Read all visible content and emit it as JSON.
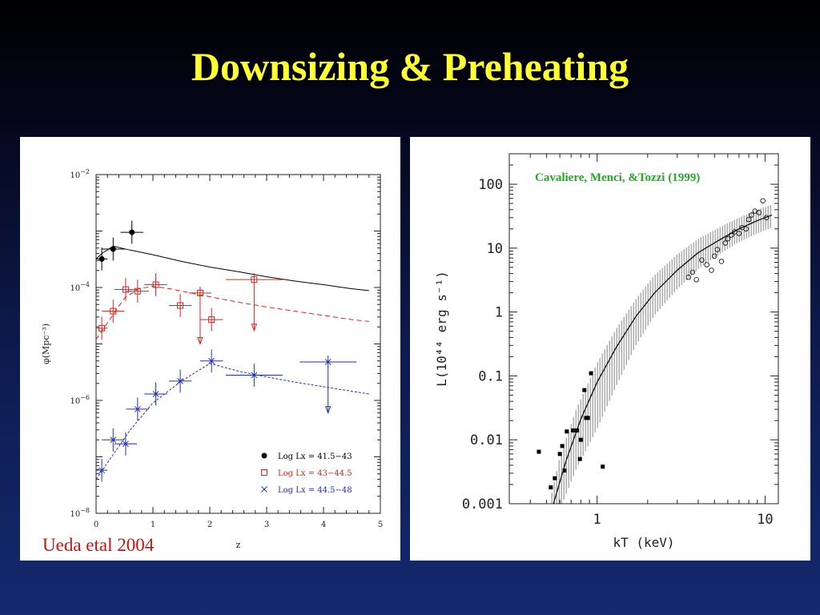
{
  "slide": {
    "title": "Downsizing & Preheating",
    "credit_left": "Ueda etal 2004",
    "credit_right": "Cavaliere, Menci, &Tozzi (1999)"
  },
  "colors": {
    "title": "#ffff33",
    "series_black": "#000000",
    "series_red": "#dd2222",
    "series_blue": "#2233aa",
    "credit_left": "#cc1111",
    "credit_right": "#22aa22"
  },
  "chart_data": [
    {
      "type": "scatter",
      "xlabel": "z",
      "ylabel": "φ(Mpc⁻³)",
      "xlim": [
        0,
        5
      ],
      "ylim": [
        1e-08,
        0.01
      ],
      "log_y": true,
      "x_ticks": [
        "0",
        "1",
        "2",
        "3",
        "4",
        "5"
      ],
      "y_ticks": [
        {
          "value": 0.01,
          "base": "10",
          "exp": "−2"
        },
        {
          "value": 0.0001,
          "base": "10",
          "exp": "−4"
        },
        {
          "value": 1e-06,
          "base": "10",
          "exp": "−6"
        },
        {
          "value": 1e-08,
          "base": "10",
          "exp": "−8"
        }
      ],
      "legend_position": "bottom-right",
      "series": [
        {
          "name": "Log Lx = 41.5−43",
          "color": "#000000",
          "marker": "filled-circle",
          "points": [
            {
              "x": 0.1,
              "y": 0.00032
            },
            {
              "x": 0.3,
              "y": 0.00048
            },
            {
              "x": 0.63,
              "y": 0.00095
            }
          ],
          "model": [
            [
              0,
              0.00032
            ],
            [
              0.1,
              0.0004
            ],
            [
              0.3,
              0.00054
            ],
            [
              0.6,
              0.00046
            ],
            [
              1,
              0.00038
            ],
            [
              1.5,
              0.00029
            ],
            [
              2,
              0.00023
            ],
            [
              2.5,
              0.00019
            ],
            [
              3,
              0.000155
            ],
            [
              3.5,
              0.00013
            ],
            [
              4,
              0.000112
            ],
            [
              4.5,
              9.5e-05
            ],
            [
              4.8,
              8.8e-05
            ]
          ]
        },
        {
          "name": "Log Lx = 43−44.5",
          "color": "#dd2222",
          "marker": "open-square",
          "points": [
            {
              "x": 0.1,
              "y": 1.9e-05
            },
            {
              "x": 0.3,
              "y": 3.8e-05
            },
            {
              "x": 0.52,
              "y": 9.2e-05
            },
            {
              "x": 0.73,
              "y": 8.6e-05
            },
            {
              "x": 1.05,
              "y": 0.000112
            },
            {
              "x": 1.48,
              "y": 4.8e-05
            },
            {
              "x": 1.83,
              "y": 8e-05
            },
            {
              "x": 2.03,
              "y": 2.7e-05
            },
            {
              "x": 2.78,
              "y": 0.000138
            }
          ],
          "upper_limits": [
            {
              "x": 1.83,
              "y": 8e-05
            },
            {
              "x": 2.78,
              "y": 0.000138
            }
          ],
          "model": [
            [
              0,
              1.2e-05
            ],
            [
              0.25,
              2.8e-05
            ],
            [
              0.5,
              6.5e-05
            ],
            [
              0.75,
              9.5e-05
            ],
            [
              1,
              0.000105
            ],
            [
              1.3,
              9.5e-05
            ],
            [
              1.8,
              7.5e-05
            ],
            [
              2.5,
              5.5e-05
            ],
            [
              3,
              4.5e-05
            ],
            [
              3.5,
              3.8e-05
            ],
            [
              4,
              3.2e-05
            ],
            [
              4.5,
              2.7e-05
            ],
            [
              4.8,
              2.5e-05
            ]
          ]
        },
        {
          "name": "Log Lx = 44.5−48",
          "color": "#2233aa",
          "marker": "cross",
          "points": [
            {
              "x": 0.1,
              "y": 5.8e-08
            },
            {
              "x": 0.3,
              "y": 2e-07
            },
            {
              "x": 0.52,
              "y": 1.7e-07
            },
            {
              "x": 0.73,
              "y": 7e-07
            },
            {
              "x": 1.05,
              "y": 1.3e-06
            },
            {
              "x": 1.48,
              "y": 2.2e-06
            },
            {
              "x": 2.03,
              "y": 5e-06
            },
            {
              "x": 2.78,
              "y": 2.8e-06
            },
            {
              "x": 4.08,
              "y": 4.8e-06
            }
          ],
          "upper_limits": [
            {
              "x": 4.08,
              "y": 4.8e-06
            }
          ],
          "model": [
            [
              0,
              4e-08
            ],
            [
              0.3,
              1.1e-07
            ],
            [
              0.6,
              3e-07
            ],
            [
              1,
              9e-07
            ],
            [
              1.5,
              2.2e-06
            ],
            [
              2,
              4.5e-06
            ],
            [
              2.5,
              3.3e-06
            ],
            [
              3,
              2.6e-06
            ],
            [
              3.5,
              2.1e-06
            ],
            [
              4,
              1.75e-06
            ],
            [
              4.5,
              1.45e-06
            ],
            [
              4.8,
              1.3e-06
            ]
          ]
        }
      ]
    },
    {
      "type": "scatter",
      "xlabel": "kT (keV)",
      "ylabel": "L(10⁴⁴ erg s⁻¹)",
      "xlim": [
        0.3,
        12
      ],
      "ylim": [
        0.001,
        300
      ],
      "log_x": true,
      "log_y": true,
      "x_ticks": [
        "1",
        "10"
      ],
      "y_ticks": [
        "100",
        "10",
        "1",
        "0.1",
        "0.01",
        "0.001"
      ],
      "series": [
        {
          "name": "",
          "marker": "filled-square",
          "points": [
            {
              "x": 0.45,
              "y": 0.0065
            },
            {
              "x": 0.53,
              "y": 0.0018
            },
            {
              "x": 0.56,
              "y": 0.0025
            },
            {
              "x": 0.6,
              "y": 0.006
            },
            {
              "x": 0.62,
              "y": 0.008
            },
            {
              "x": 0.64,
              "y": 0.0033
            },
            {
              "x": 0.66,
              "y": 0.0135
            },
            {
              "x": 0.72,
              "y": 0.014
            },
            {
              "x": 0.76,
              "y": 0.014
            },
            {
              "x": 0.79,
              "y": 0.005
            },
            {
              "x": 0.8,
              "y": 0.01
            },
            {
              "x": 0.84,
              "y": 0.06
            },
            {
              "x": 0.86,
              "y": 0.022
            },
            {
              "x": 0.88,
              "y": 0.022
            },
            {
              "x": 0.92,
              "y": 0.11
            },
            {
              "x": 1.08,
              "y": 0.0038
            }
          ]
        },
        {
          "name": "",
          "marker": "open-circle",
          "points": [
            {
              "x": 3.5,
              "y": 3.5
            },
            {
              "x": 3.7,
              "y": 4.2
            },
            {
              "x": 3.9,
              "y": 3.2
            },
            {
              "x": 4.2,
              "y": 6.5
            },
            {
              "x": 4.5,
              "y": 5.5
            },
            {
              "x": 4.8,
              "y": 4.5
            },
            {
              "x": 5.0,
              "y": 7.5
            },
            {
              "x": 5.2,
              "y": 9.5
            },
            {
              "x": 5.5,
              "y": 6.2
            },
            {
              "x": 5.8,
              "y": 12
            },
            {
              "x": 6.0,
              "y": 14
            },
            {
              "x": 6.3,
              "y": 16
            },
            {
              "x": 6.6,
              "y": 18
            },
            {
              "x": 7.0,
              "y": 17
            },
            {
              "x": 7.3,
              "y": 21
            },
            {
              "x": 7.7,
              "y": 20
            },
            {
              "x": 8.0,
              "y": 28
            },
            {
              "x": 8.3,
              "y": 33
            },
            {
              "x": 8.7,
              "y": 38
            },
            {
              "x": 9.2,
              "y": 36
            },
            {
              "x": 9.7,
              "y": 55
            },
            {
              "x": 10.2,
              "y": 30
            }
          ]
        }
      ],
      "model": {
        "center": [
          [
            0.55,
            0.001
          ],
          [
            0.65,
            0.0045
          ],
          [
            0.8,
            0.021
          ],
          [
            1,
            0.08
          ],
          [
            1.3,
            0.28
          ],
          [
            1.7,
            0.85
          ],
          [
            2.2,
            2
          ],
          [
            3,
            4.5
          ],
          [
            4,
            8.5
          ],
          [
            5.5,
            14
          ],
          [
            7,
            20
          ],
          [
            9,
            27
          ],
          [
            11,
            33
          ]
        ],
        "band_upper": [
          [
            0.52,
            0.001
          ],
          [
            0.6,
            0.0055
          ],
          [
            0.75,
            0.03
          ],
          [
            1,
            0.16
          ],
          [
            1.3,
            0.55
          ],
          [
            1.7,
            1.6
          ],
          [
            2.2,
            3.8
          ],
          [
            3,
            8
          ],
          [
            4,
            14
          ],
          [
            5.5,
            22
          ],
          [
            7,
            30
          ],
          [
            9,
            40
          ],
          [
            11,
            48
          ]
        ],
        "band_lower": [
          [
            0.62,
            0.001
          ],
          [
            0.75,
            0.0035
          ],
          [
            1,
            0.015
          ],
          [
            1.3,
            0.07
          ],
          [
            1.7,
            0.3
          ],
          [
            2.2,
            0.9
          ],
          [
            3,
            2.3
          ],
          [
            4,
            4.7
          ],
          [
            5.5,
            8.5
          ],
          [
            7,
            12.5
          ],
          [
            9,
            17
          ],
          [
            11,
            21
          ]
        ]
      }
    }
  ]
}
